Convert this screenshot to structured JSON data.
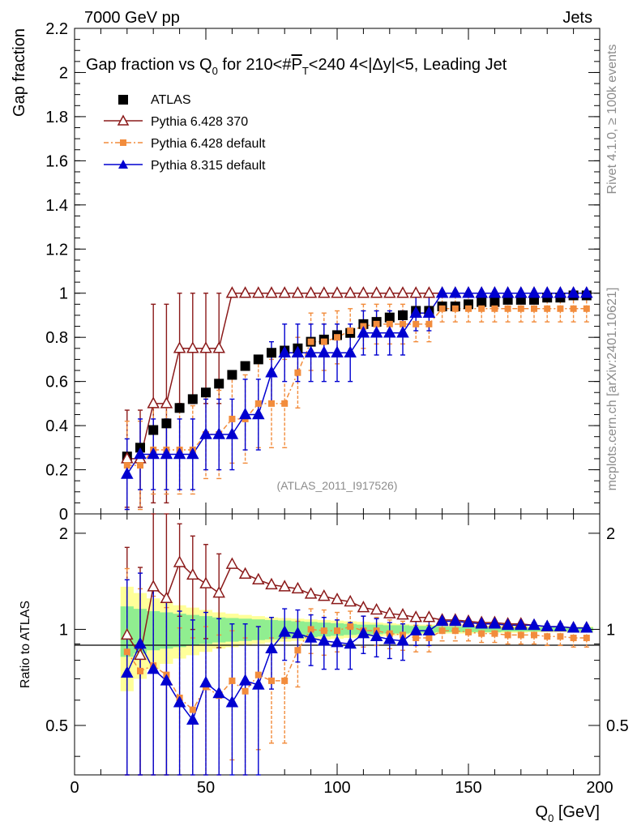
{
  "header": {
    "left": "7000 GeV pp",
    "right": "Jets"
  },
  "side_labels": {
    "rivet": "Rivet 4.1.0, ≥ 100k events",
    "mcplots": "mcplots.cern.ch [arXiv:2401.10621]"
  },
  "colors": {
    "atlas": "#000000",
    "p6_370": "#8b1a1a",
    "p6_default": "#f28c3c",
    "p8_default": "#0000d0",
    "band_inner": "#90ee90",
    "band_outer": "#ffff99"
  },
  "chart_data": [
    {
      "type": "line",
      "title_parts": {
        "pre": "Gap fraction vs Q",
        "sub": "0",
        "mid": " for 210<#",
        "over": "P",
        "over_sub": "T",
        "post": "<240  4<|Δy|<5, Leading Jet"
      },
      "ylabel": "Gap fraction",
      "ylim": [
        0,
        2.2
      ],
      "yticks": [
        0,
        0.2,
        0.4,
        0.6,
        0.8,
        1,
        1.2,
        1.4,
        1.6,
        1.8,
        2,
        2.2
      ],
      "ytick_labels": [
        "0",
        "0.2",
        "0.4",
        "0.6",
        "0.8",
        "1",
        "1.2",
        "1.4",
        "1.6",
        "1.8",
        "2",
        "2.2"
      ],
      "watermark": "(ATLAS_2011_I917526)",
      "x": [
        20,
        25,
        30,
        35,
        40,
        45,
        50,
        55,
        60,
        65,
        70,
        75,
        80,
        85,
        90,
        95,
        100,
        105,
        110,
        115,
        120,
        125,
        130,
        135,
        140,
        145,
        150,
        155,
        160,
        165,
        170,
        175,
        180,
        185,
        190,
        195
      ],
      "series": [
        {
          "name": "ATLAS",
          "values": [
            0.26,
            0.3,
            0.38,
            0.41,
            0.48,
            0.52,
            0.55,
            0.59,
            0.63,
            0.67,
            0.7,
            0.73,
            0.74,
            0.75,
            0.78,
            0.79,
            0.81,
            0.82,
            0.86,
            0.87,
            0.89,
            0.9,
            0.92,
            0.92,
            0.94,
            0.94,
            0.95,
            0.96,
            0.96,
            0.97,
            0.97,
            0.97,
            0.98,
            0.98,
            0.99,
            0.99
          ]
        },
        {
          "name": "Pythia 6.428 370",
          "values": [
            0.25,
            0.25,
            0.5,
            0.5,
            0.75,
            0.75,
            0.75,
            0.75,
            1.0,
            1.0,
            1.0,
            1.0,
            1.0,
            1.0,
            1.0,
            1.0,
            1.0,
            1.0,
            1.0,
            1.0,
            1.0,
            1.0,
            1.0,
            1.0,
            1.0,
            1.0,
            1.0,
            1.0,
            1.0,
            1.0,
            1.0,
            1.0,
            1.0,
            1.0,
            1.0,
            1.0
          ],
          "errors": [
            0.22,
            0.22,
            0.45,
            0.45,
            0.25,
            0.25,
            0.25,
            0.25,
            0,
            0,
            0,
            0,
            0,
            0,
            0,
            0,
            0,
            0,
            0,
            0,
            0,
            0,
            0,
            0,
            0,
            0,
            0,
            0,
            0,
            0,
            0,
            0,
            0,
            0,
            0,
            0
          ]
        },
        {
          "name": "Pythia 6.428 default",
          "values": [
            0.22,
            0.22,
            0.29,
            0.29,
            0.29,
            0.29,
            0.36,
            0.36,
            0.43,
            0.43,
            0.5,
            0.5,
            0.5,
            0.64,
            0.78,
            0.78,
            0.8,
            0.83,
            0.85,
            0.86,
            0.86,
            0.86,
            0.86,
            0.86,
            0.93,
            0.93,
            0.93,
            0.93,
            0.93,
            0.93,
            0.93,
            0.93,
            0.93,
            0.93,
            0.93,
            0.93
          ],
          "errors": [
            0.2,
            0.2,
            0.2,
            0.2,
            0.2,
            0.2,
            0.2,
            0.2,
            0.2,
            0.2,
            0.2,
            0.2,
            0.2,
            0.16,
            0.13,
            0.13,
            0.12,
            0.1,
            0.1,
            0.09,
            0.09,
            0.09,
            0.08,
            0.08,
            0.06,
            0.06,
            0.06,
            0.06,
            0.06,
            0.06,
            0.06,
            0.06,
            0.06,
            0.06,
            0.06,
            0.06
          ]
        },
        {
          "name": "Pythia 8.315 default",
          "values": [
            0.18,
            0.27,
            0.27,
            0.27,
            0.27,
            0.27,
            0.36,
            0.36,
            0.36,
            0.45,
            0.45,
            0.64,
            0.73,
            0.73,
            0.73,
            0.73,
            0.73,
            0.73,
            0.82,
            0.82,
            0.82,
            0.82,
            0.91,
            0.91,
            1.0,
            1.0,
            1.0,
            1.0,
            1.0,
            1.0,
            1.0,
            1.0,
            1.0,
            1.0,
            1.0,
            1.0
          ],
          "errors": [
            0.16,
            0.16,
            0.16,
            0.16,
            0.16,
            0.16,
            0.16,
            0.16,
            0.16,
            0.16,
            0.16,
            0.14,
            0.13,
            0.13,
            0.13,
            0.13,
            0.13,
            0.13,
            0.1,
            0.1,
            0.1,
            0.1,
            0.08,
            0.08,
            0,
            0,
            0,
            0,
            0,
            0,
            0,
            0,
            0,
            0,
            0,
            0
          ]
        }
      ]
    },
    {
      "type": "line",
      "ylabel": "Ratio to ATLAS",
      "ylog": true,
      "ylim": [
        0.35,
        2.3
      ],
      "yticks": [
        0.5,
        1,
        2
      ],
      "ytick_labels": [
        "0.5",
        "1",
        "2"
      ],
      "xlabel_parts": {
        "pre": "Q",
        "sub": "0",
        "post": " [GeV]"
      },
      "xlim": [
        0,
        200
      ],
      "xticks": [
        0,
        50,
        100,
        150,
        200
      ],
      "xtick_labels": [
        "0",
        "50",
        "100",
        "150",
        "200"
      ],
      "bands": {
        "inner": [
          0.18,
          0.16,
          0.14,
          0.13,
          0.12,
          0.11,
          0.1,
          0.09,
          0.085,
          0.08,
          0.075,
          0.07,
          0.065,
          0.06,
          0.055,
          0.05,
          0.045,
          0.04,
          0.035,
          0.035,
          0.03,
          0.03,
          0.025,
          0.025,
          0.02,
          0.02,
          0.02,
          0.02,
          0.02,
          0.015,
          0.015,
          0.015,
          0.015,
          0.015,
          0.015,
          0.015
        ],
        "outer": [
          0.36,
          0.3,
          0.25,
          0.22,
          0.19,
          0.17,
          0.15,
          0.13,
          0.12,
          0.11,
          0.1,
          0.09,
          0.085,
          0.08,
          0.075,
          0.07,
          0.065,
          0.06,
          0.055,
          0.05,
          0.045,
          0.04,
          0.035,
          0.035,
          0.03,
          0.03,
          0.03,
          0.025,
          0.025,
          0.025,
          0.025,
          0.02,
          0.02,
          0.02,
          0.02,
          0.02
        ]
      },
      "series": [
        {
          "name": "Pythia 6.428 370",
          "values": [
            0.96,
            0.83,
            1.36,
            1.25,
            1.62,
            1.48,
            1.39,
            1.3,
            1.6,
            1.49,
            1.43,
            1.38,
            1.36,
            1.34,
            1.29,
            1.27,
            1.24,
            1.22,
            1.17,
            1.15,
            1.12,
            1.11,
            1.09,
            1.09,
            1.07,
            1.07,
            1.06,
            1.05,
            1.05,
            1.04,
            1.04,
            1.03,
            1.02,
            1.02,
            1.01,
            1.01
          ]
        },
        {
          "name": "Pythia 6.428 default",
          "values": [
            0.85,
            0.74,
            0.77,
            0.72,
            0.61,
            0.56,
            0.66,
            0.62,
            0.69,
            0.64,
            0.72,
            0.69,
            0.69,
            0.86,
            1.0,
            0.99,
            0.99,
            1.02,
            0.99,
            0.99,
            0.97,
            0.96,
            0.94,
            0.94,
            0.99,
            0.99,
            0.98,
            0.97,
            0.97,
            0.96,
            0.96,
            0.96,
            0.95,
            0.95,
            0.94,
            0.94
          ],
          "errors": [
            0.7,
            0.6,
            0.5,
            0.45,
            0.4,
            0.38,
            0.36,
            0.34,
            0.3,
            0.3,
            0.3,
            0.25,
            0.25,
            0.2,
            0.16,
            0.16,
            0.14,
            0.12,
            0.11,
            0.1,
            0.1,
            0.1,
            0.09,
            0.09,
            0.07,
            0.07,
            0.06,
            0.06,
            0.06,
            0.06,
            0.06,
            0.06,
            0.06,
            0.06,
            0.06,
            0.06
          ]
        },
        {
          "name": "Pythia 8.315 default",
          "values": [
            0.73,
            0.9,
            0.75,
            0.69,
            0.59,
            0.52,
            0.68,
            0.63,
            0.59,
            0.69,
            0.67,
            0.87,
            0.98,
            0.97,
            0.94,
            0.92,
            0.91,
            0.9,
            0.97,
            0.95,
            0.93,
            0.92,
            0.99,
            0.99,
            1.06,
            1.06,
            1.05,
            1.04,
            1.04,
            1.03,
            1.03,
            1.03,
            1.02,
            1.02,
            1.01,
            1.01
          ],
          "errors": [
            0.7,
            0.6,
            0.6,
            0.55,
            0.55,
            0.55,
            0.45,
            0.45,
            0.45,
            0.35,
            0.35,
            0.22,
            0.18,
            0.18,
            0.17,
            0.17,
            0.16,
            0.15,
            0.13,
            0.13,
            0.12,
            0.12,
            0.1,
            0.1,
            0.02,
            0.02,
            0.02,
            0.02,
            0.02,
            0.02,
            0.02,
            0.02,
            0.02,
            0.02,
            0.02,
            0.02
          ]
        }
      ]
    }
  ]
}
